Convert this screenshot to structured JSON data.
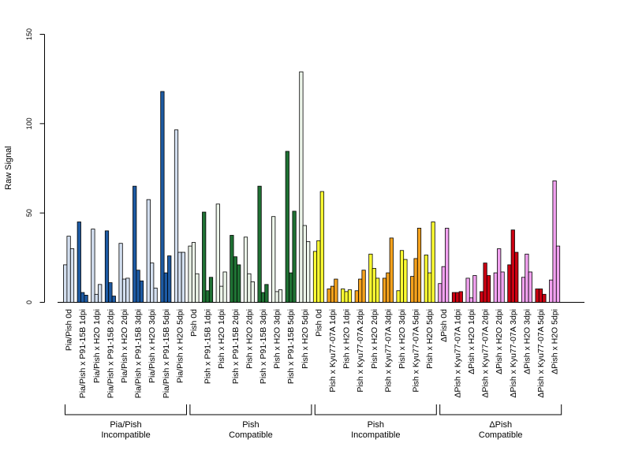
{
  "chart_data": {
    "type": "bar",
    "ylabel": "Raw Signal",
    "xlabel": "",
    "title": "",
    "ylim": [
      0,
      150
    ],
    "yticks": [
      0,
      50,
      100,
      150
    ],
    "grid": false,
    "categories": [
      "Pia/Pish 0d",
      "Pia/Pish x P91-15B 1dpi",
      "Pia/Pish x H2O 1dpi",
      "Pia/Pish x P91-15B 2dpi",
      "Pia/Pish x H2O 2dpi",
      "Pia/Pish x P91-15B 3dpi",
      "Pia/Pish x H2O 3dpi",
      "Pia/Pish x P91-15B 5dpi",
      "Pia/Pish x H2O 5dpi",
      "Pish 0d",
      "Pish x P91-15B 1dpi",
      "Pish x H2O 1dpi",
      "Pish x P91-15B 2dpi",
      "Pish x H2O 2dpi",
      "Pish x P91-15B 3dpi",
      "Pish x H2O 3dpi",
      "Pish x P91-15B 5dpi",
      "Pish x H2O 5dpi",
      "Pish 0d",
      "Pish x Kyu77-07A 1dpi",
      "Pish x H2O 1dpi",
      "Pish x Kyu77-07A 2dpi",
      "Pish x H2O 2dpi",
      "Pish x Kyu77-07A 3dpi",
      "Pish x H2O 3dpi",
      "Pish x Kyu77-07A 5dpi",
      "Pish x H2O 5dpi",
      "ΔPish 0d",
      "ΔPish x Kyu77-07A 1dpi",
      "ΔPish x H2O 1dpi",
      "ΔPish x Kyu77-07A 2dpi",
      "ΔPish x H2O 2dpi",
      "ΔPish x Kyu77-07A 3dpi",
      "ΔPish x H2O 3dpi",
      "ΔPish x Kyu77-07A 5dpi",
      "ΔPish x H2O 5dpi"
    ],
    "values": [
      [
        21,
        37,
        30
      ],
      [
        45,
        5.5,
        4
      ],
      [
        41,
        4.5,
        10
      ],
      [
        40,
        11,
        3.5
      ],
      [
        33,
        13,
        13.5
      ],
      [
        65,
        18,
        12
      ],
      [
        57.5,
        22,
        8
      ],
      [
        118,
        16.5,
        26
      ],
      [
        96.5,
        28,
        28
      ],
      [
        31.5,
        33.5,
        16
      ],
      [
        50.5,
        6.5,
        14
      ],
      [
        55,
        9,
        17
      ],
      [
        37.5,
        25.5,
        21
      ],
      [
        36.5,
        16,
        11.5
      ],
      [
        65,
        5.5,
        10
      ],
      [
        48,
        6,
        7
      ],
      [
        84.5,
        16.5,
        51
      ],
      [
        129,
        43,
        34
      ],
      [
        28.5,
        34.5,
        62
      ],
      [
        7.5,
        9,
        13
      ],
      [
        7.5,
        6,
        7
      ],
      [
        6.5,
        13,
        18
      ],
      [
        27,
        19,
        13.5
      ],
      [
        13.5,
        16.5,
        36
      ],
      [
        6.5,
        29,
        24
      ],
      [
        14.5,
        24.5,
        41.5
      ],
      [
        26.5,
        16.5,
        45
      ],
      [
        10.5,
        20,
        41.5
      ],
      [
        5.5,
        5.5,
        6
      ],
      [
        13.5,
        2.5,
        15
      ],
      [
        6,
        22,
        15
      ],
      [
        16.5,
        30,
        17
      ],
      [
        21,
        40.5,
        28
      ],
      [
        14,
        27,
        17
      ],
      [
        7.5,
        7.5,
        4.5
      ],
      [
        12.5,
        68,
        31.5
      ]
    ],
    "colors": [
      "#d3dff0",
      "#1d5aa3",
      "#d3dff0",
      "#1d5aa3",
      "#d3dff0",
      "#1d5aa3",
      "#d3dff0",
      "#1d5aa3",
      "#d3dff0",
      "#edf6ea",
      "#1f7234",
      "#edf6ea",
      "#1f7234",
      "#edf6ea",
      "#1f7234",
      "#edf6ea",
      "#1f7234",
      "#edf6ea",
      "#ffff33",
      "#f5a21d",
      "#ffff33",
      "#f5a21d",
      "#ffff33",
      "#f5a21d",
      "#ffff33",
      "#f5a21d",
      "#ffff33",
      "#f2a2f0",
      "#cc0012",
      "#f2a2f0",
      "#cc0012",
      "#f2a2f0",
      "#cc0012",
      "#f2a2f0",
      "#cc0012",
      "#f2a2f0"
    ],
    "groups": [
      {
        "line1": "Pia/Pish",
        "line2": "Incompatible",
        "from": 0,
        "to": 8
      },
      {
        "line1": "Pish",
        "line2": "Compatible",
        "from": 9,
        "to": 17
      },
      {
        "line1": "Pish",
        "line2": "Incompatible",
        "from": 18,
        "to": 26
      },
      {
        "line1": "ΔPish",
        "line2": "Compatible",
        "from": 27,
        "to": 35
      }
    ]
  }
}
